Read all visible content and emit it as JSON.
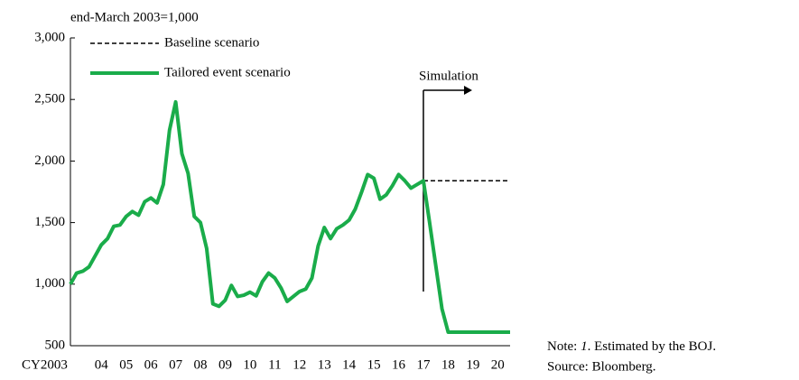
{
  "chart_data": {
    "type": "line",
    "ylabel": "end-March 2003=1,000",
    "x": [
      2003.25,
      2003.5,
      2003.75,
      2004.0,
      2004.25,
      2004.5,
      2004.75,
      2005.0,
      2005.25,
      2005.5,
      2005.75,
      2006.0,
      2006.25,
      2006.5,
      2006.75,
      2007.0,
      2007.25,
      2007.5,
      2007.75,
      2008.0,
      2008.25,
      2008.5,
      2008.75,
      2009.0,
      2009.25,
      2009.5,
      2009.75,
      2010.0,
      2010.25,
      2010.5,
      2010.75,
      2011.0,
      2011.25,
      2011.5,
      2011.75,
      2012.0,
      2012.25,
      2012.5,
      2012.75,
      2013.0,
      2013.25,
      2013.5,
      2013.75,
      2014.0,
      2014.25,
      2014.5,
      2014.75,
      2015.0,
      2015.25,
      2015.5,
      2015.75,
      2016.0,
      2016.25,
      2016.5,
      2016.75,
      2017.0,
      2017.25,
      2017.5,
      2017.75,
      2018.0,
      2018.25,
      2018.5,
      2018.75,
      2019.0,
      2019.25,
      2019.5,
      2019.75,
      2020.0,
      2020.25,
      2020.5,
      2020.75,
      2021.0
    ],
    "series": [
      {
        "name": "Baseline scenario",
        "color": "#000000",
        "dash": true,
        "values": [
          null,
          null,
          null,
          null,
          null,
          null,
          null,
          null,
          null,
          null,
          null,
          null,
          null,
          null,
          null,
          null,
          null,
          null,
          null,
          null,
          null,
          null,
          null,
          null,
          null,
          null,
          null,
          null,
          null,
          null,
          null,
          null,
          null,
          null,
          null,
          null,
          null,
          null,
          null,
          null,
          null,
          null,
          null,
          null,
          null,
          null,
          null,
          null,
          null,
          null,
          null,
          null,
          null,
          null,
          null,
          null,
          null,
          1840,
          1840,
          1840,
          1840,
          1840,
          1840,
          1840,
          1840,
          1840,
          1840,
          1840,
          1840,
          1840,
          1840,
          1840
        ]
      },
      {
        "name": "Tailored event scenario",
        "color": "#1aac4a",
        "dash": false,
        "values": [
          1000,
          1090,
          1105,
          1140,
          1230,
          1320,
          1370,
          1470,
          1480,
          1550,
          1590,
          1560,
          1670,
          1700,
          1660,
          1810,
          2250,
          2480,
          2060,
          1900,
          1550,
          1500,
          1290,
          840,
          820,
          870,
          990,
          900,
          910,
          935,
          905,
          1020,
          1090,
          1050,
          970,
          860,
          900,
          940,
          960,
          1050,
          1310,
          1460,
          1370,
          1450,
          1480,
          1520,
          1610,
          1745,
          1890,
          1860,
          1690,
          1725,
          1800,
          1890,
          1840,
          1780,
          1810,
          1840,
          1500,
          1150,
          800,
          610,
          610,
          610,
          610,
          610,
          610,
          610,
          610,
          610,
          610,
          610
        ]
      }
    ],
    "xlim": [
      2003.25,
      2021.0
    ],
    "xticks": [
      {
        "value": 2003.5,
        "label": "CY2003"
      },
      {
        "value": 2004.5,
        "label": "04"
      },
      {
        "value": 2005.5,
        "label": "05"
      },
      {
        "value": 2006.5,
        "label": "06"
      },
      {
        "value": 2007.5,
        "label": "07"
      },
      {
        "value": 2008.5,
        "label": "08"
      },
      {
        "value": 2009.5,
        "label": "09"
      },
      {
        "value": 2010.5,
        "label": "10"
      },
      {
        "value": 2011.5,
        "label": "11"
      },
      {
        "value": 2012.5,
        "label": "12"
      },
      {
        "value": 2013.5,
        "label": "13"
      },
      {
        "value": 2014.5,
        "label": "14"
      },
      {
        "value": 2015.5,
        "label": "15"
      },
      {
        "value": 2016.5,
        "label": "16"
      },
      {
        "value": 2017.5,
        "label": "17"
      },
      {
        "value": 2018.5,
        "label": "18"
      },
      {
        "value": 2019.5,
        "label": "19"
      },
      {
        "value": 2020.5,
        "label": "20"
      }
    ],
    "ylim": [
      500,
      3000
    ],
    "yticks": [
      500,
      {
        "value": 1000,
        "label": "1,000"
      },
      {
        "value": 1500,
        "label": "1,500"
      },
      {
        "value": 2000,
        "label": "2,000"
      },
      {
        "value": 2500,
        "label": "2,500"
      },
      {
        "value": 3000,
        "label": "3,000"
      }
    ],
    "grid": false,
    "annotation": {
      "text": "Simulation",
      "x": 2017.5
    },
    "notes": [
      "Note: ",
      "1",
      ". Estimated by the BOJ.",
      "Source: Bloomberg."
    ]
  }
}
